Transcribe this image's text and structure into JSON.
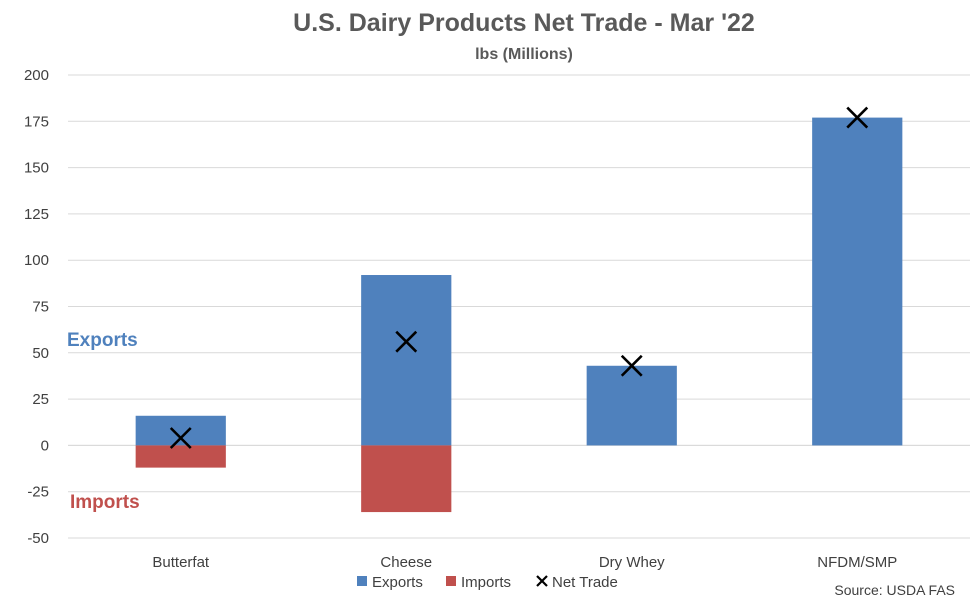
{
  "chart_data": {
    "type": "bar",
    "title": "U.S. Dairy Products Net Trade - Mar '22",
    "subtitle": "lbs (Millions)",
    "categories": [
      "Butterfat",
      "Cheese",
      "Dry Whey",
      "NFDM/SMP"
    ],
    "series": [
      {
        "name": "Exports",
        "kind": "bar",
        "color": "#4F81BD",
        "values": [
          16,
          92,
          43,
          177
        ]
      },
      {
        "name": "Imports",
        "kind": "bar",
        "color": "#C0504D",
        "values": [
          -12,
          -36,
          0,
          0
        ]
      },
      {
        "name": "Net Trade",
        "kind": "marker",
        "color": "#000000",
        "values": [
          4,
          56,
          43,
          177
        ]
      }
    ],
    "ylim": [
      -50,
      200
    ],
    "yticks": [
      200,
      175,
      150,
      125,
      100,
      75,
      50,
      25,
      0,
      -25,
      -50
    ],
    "grid": true,
    "legend": "bottom",
    "annotations": [
      {
        "text": "Exports",
        "color": "#4F81BD"
      },
      {
        "text": "Imports",
        "color": "#C0504D"
      }
    ],
    "source": "Source: USDA FAS"
  }
}
